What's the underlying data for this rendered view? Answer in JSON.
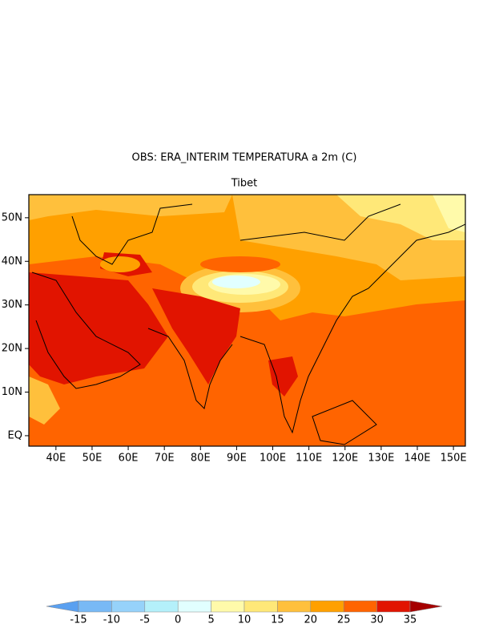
{
  "title": "OBS: ERA_INTERIM TEMPERATURA a 2m (C)",
  "subtitle": "Tibet",
  "xlim": [
    32.5,
    153.3
  ],
  "ylim": [
    -2.4,
    55.3
  ],
  "xticks": [
    {
      "value": 40,
      "label": "40E"
    },
    {
      "value": 50,
      "label": "50E"
    },
    {
      "value": 60,
      "label": "60E"
    },
    {
      "value": 70,
      "label": "70E"
    },
    {
      "value": 80,
      "label": "80E"
    },
    {
      "value": 90,
      "label": "90E"
    },
    {
      "value": 100,
      "label": "100E"
    },
    {
      "value": 110,
      "label": "110E"
    },
    {
      "value": 120,
      "label": "120E"
    },
    {
      "value": 130,
      "label": "130E"
    },
    {
      "value": 140,
      "label": "140E"
    },
    {
      "value": 150,
      "label": "150E"
    }
  ],
  "yticks": [
    {
      "value": 0,
      "label": "EQ"
    },
    {
      "value": 10,
      "label": "10N"
    },
    {
      "value": 20,
      "label": "20N"
    },
    {
      "value": 30,
      "label": "30N"
    },
    {
      "value": 40,
      "label": "40N"
    },
    {
      "value": 50,
      "label": "50N"
    }
  ],
  "colorbar": {
    "levels": [
      -15,
      -10,
      -5,
      0,
      5,
      10,
      15,
      20,
      25,
      30,
      35
    ],
    "colors": [
      "#5aa0f0",
      "#78b9f5",
      "#96d2fa",
      "#b4f0fa",
      "#e1ffff",
      "#fffaaa",
      "#ffe878",
      "#ffc03c",
      "#ffa000",
      "#ff6400",
      "#e11400",
      "#a50000"
    ]
  }
}
